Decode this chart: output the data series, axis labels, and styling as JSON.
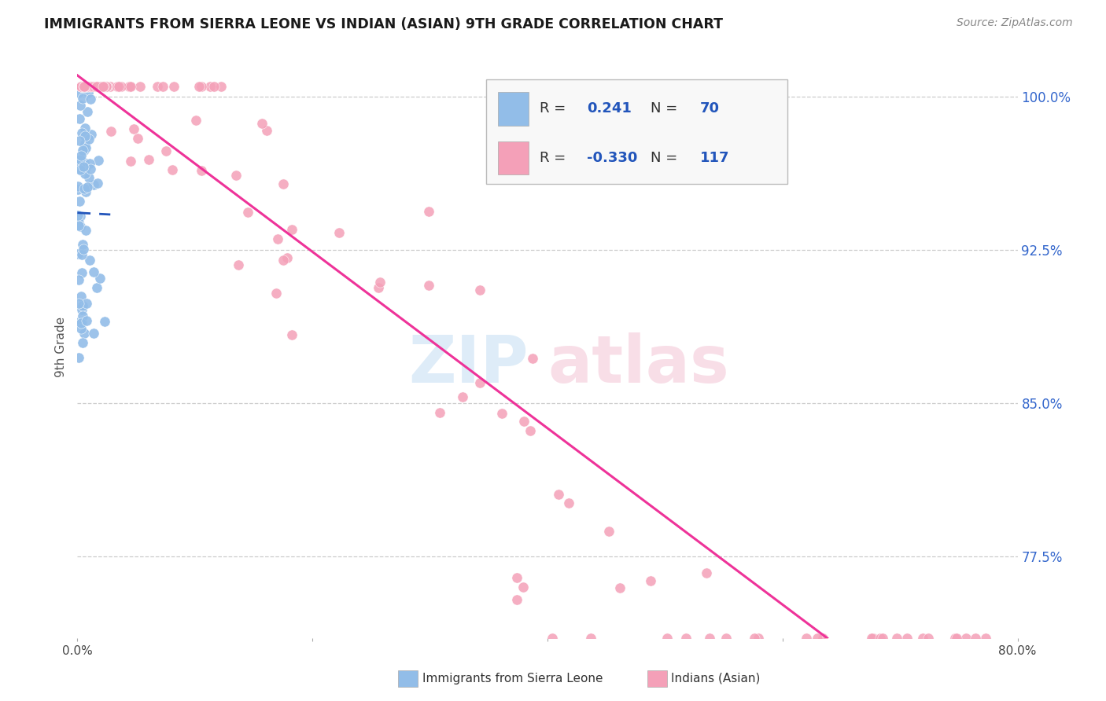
{
  "title": "IMMIGRANTS FROM SIERRA LEONE VS INDIAN (ASIAN) 9TH GRADE CORRELATION CHART",
  "source": "Source: ZipAtlas.com",
  "ylabel": "9th Grade",
  "ytick_labels": [
    "100.0%",
    "92.5%",
    "85.0%",
    "77.5%"
  ],
  "ytick_values": [
    1.0,
    0.925,
    0.85,
    0.775
  ],
  "xlim": [
    0.0,
    0.8
  ],
  "ylim": [
    0.735,
    1.02
  ],
  "blue_R": 0.241,
  "blue_N": 70,
  "pink_R": -0.33,
  "pink_N": 117,
  "blue_color": "#92BDE8",
  "pink_color": "#F4A0B8",
  "blue_line_color": "#2255BB",
  "pink_line_color": "#EE3399",
  "blue_line_dash": [
    6,
    4
  ],
  "watermark_zip_color": "#C8E0F4",
  "watermark_atlas_color": "#F4C8D8",
  "legend_label_blue": "Immigrants from Sierra Leone",
  "legend_label_pink": "Indians (Asian)"
}
